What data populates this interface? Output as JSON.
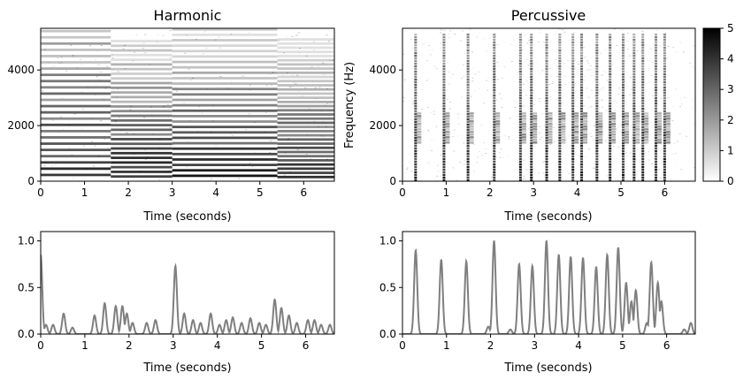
{
  "chart_data": [
    {
      "type": "heatmap",
      "panel": "harmonic-spectrogram",
      "title": "Harmonic",
      "xlabel": "Time (seconds)",
      "ylabel": "",
      "xlim": [
        0,
        6.7
      ],
      "ylim": [
        0,
        5500
      ],
      "xticks": [
        "0",
        "1",
        "2",
        "3",
        "4",
        "5",
        "6"
      ],
      "yticks": [
        "0",
        "2000",
        "4000"
      ],
      "colormap": "gray_r",
      "segments": [
        {
          "t0": 0.0,
          "t1": 1.6,
          "f0": 150,
          "harmonics": 24
        },
        {
          "t0": 1.6,
          "t1": 3.0,
          "f0": 112,
          "harmonics": 30
        },
        {
          "t0": 3.0,
          "t1": 5.4,
          "f0": 130,
          "harmonics": 28
        },
        {
          "t0": 5.4,
          "t1": 6.7,
          "f0": 100,
          "harmonics": 34
        }
      ]
    },
    {
      "type": "heatmap",
      "panel": "percussive-spectrogram",
      "title": "Percussive",
      "xlabel": "Time (seconds)",
      "ylabel": "Frequency (Hz)",
      "xlim": [
        0,
        6.7
      ],
      "ylim": [
        0,
        5500
      ],
      "xticks": [
        "0",
        "1",
        "2",
        "3",
        "4",
        "5",
        "6"
      ],
      "yticks": [
        "0",
        "2000",
        "4000"
      ],
      "colormap": "gray_r",
      "onsets": [
        0.3,
        0.95,
        1.5,
        2.1,
        2.7,
        2.95,
        3.3,
        3.6,
        3.9,
        4.1,
        4.45,
        4.75,
        5.05,
        5.3,
        5.5,
        5.8,
        6.0
      ],
      "colorbar": {
        "ticks": [
          "0",
          "1",
          "2",
          "3",
          "4",
          "5"
        ],
        "range": [
          0,
          5
        ]
      }
    },
    {
      "type": "line",
      "panel": "harmonic-onset-strength",
      "title": "",
      "xlabel": "Time (seconds)",
      "ylabel": "",
      "xlim": [
        0,
        6.65
      ],
      "ylim": [
        0,
        1.1
      ],
      "xticks": [
        "0",
        "1",
        "2",
        "3",
        "4",
        "5",
        "6"
      ],
      "yticks": [
        "0.0",
        "0.5",
        "1.0"
      ],
      "line_color": "#7f7f7f",
      "peaks": [
        {
          "x": 0.0,
          "y": 0.85
        },
        {
          "x": 0.12,
          "y": 0.1
        },
        {
          "x": 0.28,
          "y": 0.1
        },
        {
          "x": 0.52,
          "y": 0.22
        },
        {
          "x": 0.72,
          "y": 0.07
        },
        {
          "x": 1.22,
          "y": 0.2
        },
        {
          "x": 1.45,
          "y": 0.33
        },
        {
          "x": 1.7,
          "y": 0.3
        },
        {
          "x": 1.85,
          "y": 0.3
        },
        {
          "x": 1.95,
          "y": 0.22
        },
        {
          "x": 2.08,
          "y": 0.12
        },
        {
          "x": 2.4,
          "y": 0.12
        },
        {
          "x": 2.6,
          "y": 0.15
        },
        {
          "x": 3.05,
          "y": 0.73
        },
        {
          "x": 3.25,
          "y": 0.22
        },
        {
          "x": 3.45,
          "y": 0.15
        },
        {
          "x": 3.62,
          "y": 0.12
        },
        {
          "x": 3.85,
          "y": 0.22
        },
        {
          "x": 4.05,
          "y": 0.1
        },
        {
          "x": 4.2,
          "y": 0.15
        },
        {
          "x": 4.35,
          "y": 0.18
        },
        {
          "x": 4.55,
          "y": 0.12
        },
        {
          "x": 4.75,
          "y": 0.17
        },
        {
          "x": 4.95,
          "y": 0.12
        },
        {
          "x": 5.1,
          "y": 0.1
        },
        {
          "x": 5.3,
          "y": 0.37
        },
        {
          "x": 5.45,
          "y": 0.28
        },
        {
          "x": 5.62,
          "y": 0.2
        },
        {
          "x": 5.8,
          "y": 0.12
        },
        {
          "x": 6.05,
          "y": 0.15
        },
        {
          "x": 6.2,
          "y": 0.15
        },
        {
          "x": 6.35,
          "y": 0.1
        },
        {
          "x": 6.55,
          "y": 0.1
        }
      ]
    },
    {
      "type": "line",
      "panel": "percussive-onset-strength",
      "title": "",
      "xlabel": "Time (seconds)",
      "ylabel": "",
      "xlim": [
        0,
        6.65
      ],
      "ylim": [
        0,
        1.1
      ],
      "xticks": [
        "0",
        "1",
        "2",
        "3",
        "4",
        "5",
        "6"
      ],
      "yticks": [
        "0.0",
        "0.5",
        "1.0"
      ],
      "line_color": "#7f7f7f",
      "peaks": [
        {
          "x": 0.3,
          "y": 0.9
        },
        {
          "x": 0.88,
          "y": 0.8
        },
        {
          "x": 1.45,
          "y": 0.78
        },
        {
          "x": 1.95,
          "y": 0.08
        },
        {
          "x": 2.08,
          "y": 1.0
        },
        {
          "x": 2.45,
          "y": 0.05
        },
        {
          "x": 2.65,
          "y": 0.75
        },
        {
          "x": 2.95,
          "y": 0.73
        },
        {
          "x": 3.27,
          "y": 1.0
        },
        {
          "x": 3.55,
          "y": 0.85
        },
        {
          "x": 3.82,
          "y": 0.83
        },
        {
          "x": 4.1,
          "y": 0.82
        },
        {
          "x": 4.4,
          "y": 0.72
        },
        {
          "x": 4.65,
          "y": 0.85
        },
        {
          "x": 4.9,
          "y": 0.93
        },
        {
          "x": 5.08,
          "y": 0.55
        },
        {
          "x": 5.2,
          "y": 0.35
        },
        {
          "x": 5.3,
          "y": 0.47
        },
        {
          "x": 5.55,
          "y": 0.12
        },
        {
          "x": 5.65,
          "y": 0.77
        },
        {
          "x": 5.8,
          "y": 0.55
        },
        {
          "x": 5.88,
          "y": 0.35
        },
        {
          "x": 6.4,
          "y": 0.05
        },
        {
          "x": 6.55,
          "y": 0.12
        }
      ]
    }
  ]
}
